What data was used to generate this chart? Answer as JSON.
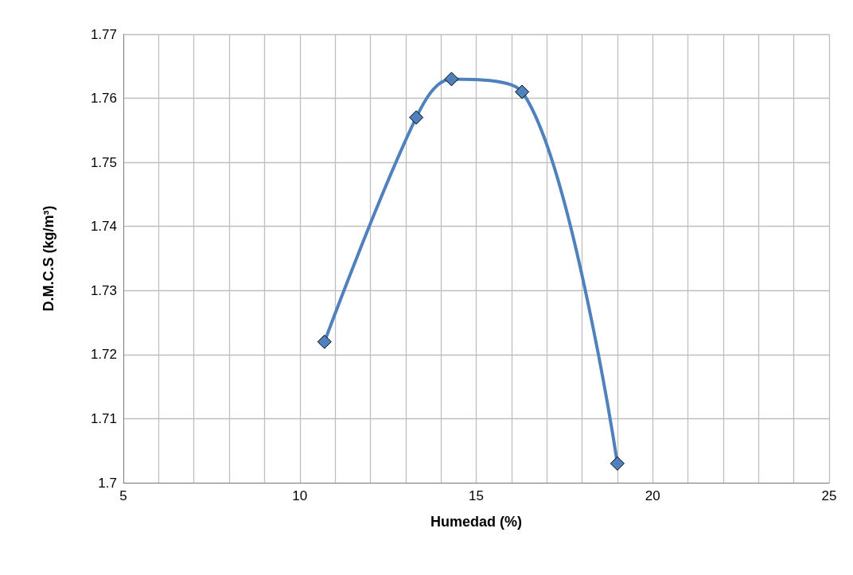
{
  "chart_data": {
    "type": "line",
    "xlabel": "Humedad (%)",
    "ylabel": "D.M.C.S (kg/m³)",
    "x": [
      10.7,
      13.3,
      14.3,
      16.3,
      19.0
    ],
    "series": [
      {
        "color": "#4f81bd",
        "values": [
          1.722,
          1.757,
          1.763,
          1.761,
          1.703
        ]
      }
    ],
    "xlim": [
      5,
      25
    ],
    "xticks": [
      5,
      {
        "value": 6,
        "label": null
      },
      {
        "value": 7,
        "label": null
      },
      {
        "value": 8,
        "label": null
      },
      {
        "value": 9,
        "label": null
      },
      10,
      {
        "value": 11,
        "label": null
      },
      {
        "value": 12,
        "label": null
      },
      {
        "value": 13,
        "label": null
      },
      {
        "value": 14,
        "label": null
      },
      15,
      {
        "value": 16,
        "label": null
      },
      {
        "value": 17,
        "label": null
      },
      {
        "value": 18,
        "label": null
      },
      {
        "value": 19,
        "label": null
      },
      20,
      {
        "value": 21,
        "label": null
      },
      {
        "value": 22,
        "label": null
      },
      {
        "value": 23,
        "label": null
      },
      {
        "value": 24,
        "label": null
      },
      25
    ],
    "ylim": [
      1.7,
      1.77
    ],
    "yticks": [
      1.7,
      1.71,
      1.72,
      1.73,
      1.74,
      1.75,
      1.76,
      1.77
    ],
    "grid": true,
    "marker": "diamond",
    "line_style": "solid"
  }
}
